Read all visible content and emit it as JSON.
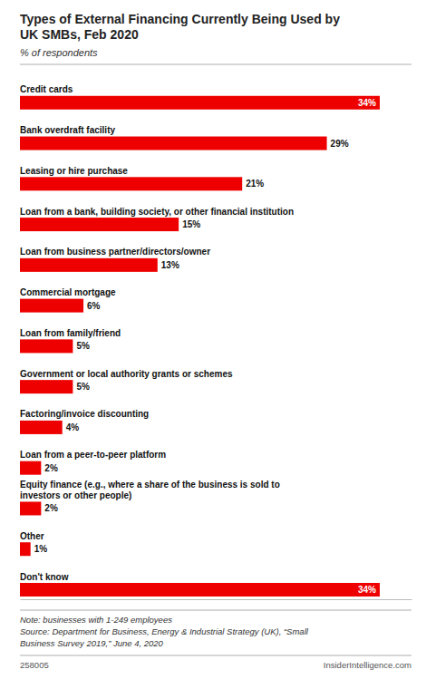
{
  "chart_data": {
    "type": "bar",
    "orientation": "horizontal",
    "title": "Types of External Financing Currently Being Used by\nUK SMBs, Feb 2020",
    "subtitle": "% of respondents",
    "categories": [
      "Credit cards",
      "Bank overdraft facility",
      "Leasing or hire purchase",
      "Loan from a bank, building society, or other financial institution",
      "Loan from business partner/directors/owner",
      "Commercial mortgage",
      "Loan from family/friend",
      "Government or local authority grants or schemes",
      "Factoring/invoice discounting",
      "Loan from a peer-to-peer platform",
      "Equity finance (e.g., where a share of the business is sold to\ninvestors or other people)",
      "Other",
      "Don't know"
    ],
    "values": [
      34,
      29,
      21,
      15,
      13,
      6,
      5,
      5,
      4,
      2,
      2,
      1,
      34
    ],
    "value_labels": [
      "34%",
      "29%",
      "21%",
      "15%",
      "13%",
      "6%",
      "5%",
      "5%",
      "4%",
      "2%",
      "2%",
      "1%",
      "34%"
    ],
    "data_labels": true,
    "color": "#ee0000",
    "xlim": [
      0,
      37
    ],
    "tick_labels": false,
    "grid": false,
    "annotations": [
      "Note: businesses with 1-249 employees",
      "Source: Department for Business, Energy & Industrial Strategy (UK), “Small",
      "Business Survey 2019,” June 4, 2020"
    ],
    "footer": [
      "258005",
      "InsiderIntelligence.com"
    ]
  }
}
